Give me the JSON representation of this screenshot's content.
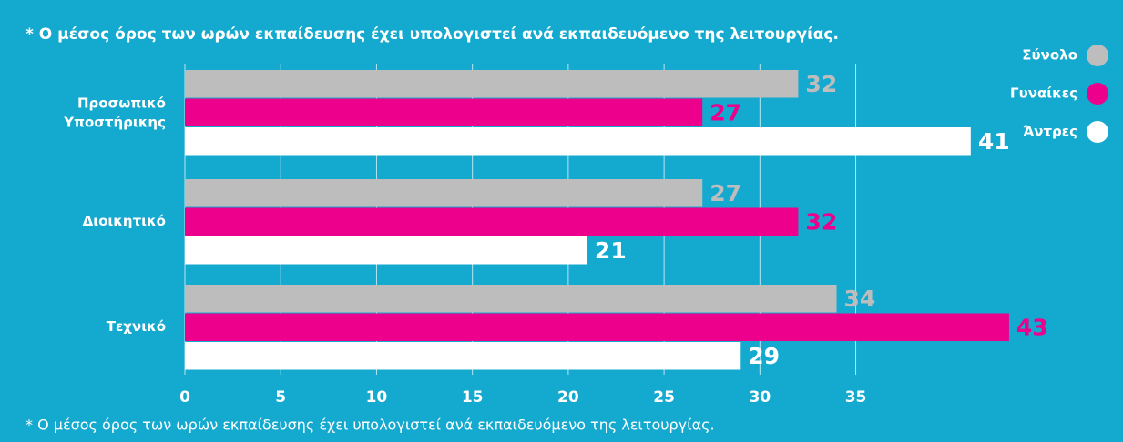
{
  "chart_data": {
    "type": "hbar",
    "title": "* Ο μέσος όρος των ωρών εκπαίδευσης έχει υπολογιστεί ανά εκπαιδευόμενο της λειτουργίας.",
    "footnote": "* Ο μέσος όρος των ωρών εκπαίδευσης έχει υπολογιστεί ανά εκπαιδευόμενο της λειτουργίας.",
    "categories": [
      "Προσωπικό Υποστήρικης",
      "Διοικητικό",
      "Τεχνικό"
    ],
    "series": [
      {
        "name": "Σύνολο",
        "color": "#bdbdbd",
        "values": [
          32,
          27,
          34
        ]
      },
      {
        "name": "Γυναίκες",
        "color": "#ec008c",
        "values": [
          27,
          32,
          43
        ]
      },
      {
        "name": "Άντρες",
        "color": "#ffffff",
        "values": [
          41,
          21,
          29
        ]
      }
    ],
    "xlim": [
      0,
      45
    ],
    "xticks": [
      0,
      5,
      10,
      15,
      20,
      25,
      30,
      35
    ],
    "grid": true,
    "legend": "top-right"
  }
}
